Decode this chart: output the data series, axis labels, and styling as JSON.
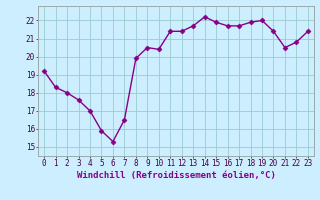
{
  "x": [
    0,
    1,
    2,
    3,
    4,
    5,
    6,
    7,
    8,
    9,
    10,
    11,
    12,
    13,
    14,
    15,
    16,
    17,
    18,
    19,
    20,
    21,
    22,
    23
  ],
  "y": [
    19.2,
    18.3,
    18.0,
    17.6,
    17.0,
    15.9,
    15.3,
    16.5,
    19.9,
    20.5,
    20.4,
    21.4,
    21.4,
    21.7,
    22.2,
    21.9,
    21.7,
    21.7,
    21.9,
    22.0,
    21.4,
    20.5,
    20.8,
    21.4
  ],
  "line_color": "#880088",
  "marker": "D",
  "marker_size": 2.5,
  "xlabel": "Windchill (Refroidissement éolien,°C)",
  "xlabel_fontsize": 6.5,
  "ylim": [
    14.5,
    22.8
  ],
  "xlim": [
    -0.5,
    23.5
  ],
  "yticks": [
    15,
    16,
    17,
    18,
    19,
    20,
    21,
    22
  ],
  "xticks": [
    0,
    1,
    2,
    3,
    4,
    5,
    6,
    7,
    8,
    9,
    10,
    11,
    12,
    13,
    14,
    15,
    16,
    17,
    18,
    19,
    20,
    21,
    22,
    23
  ],
  "grid_color": "#99cccc",
  "background_color": "#cceeff",
  "tick_fontsize": 5.5,
  "line_width": 1.0
}
